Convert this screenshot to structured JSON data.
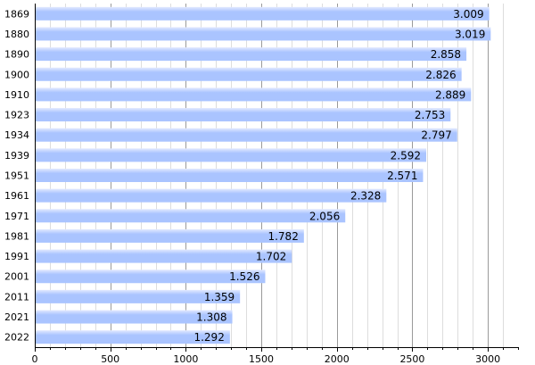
{
  "chart_data": {
    "type": "bar",
    "orientation": "horizontal",
    "categories": [
      "1869",
      "1880",
      "1890",
      "1900",
      "1910",
      "1923",
      "1934",
      "1939",
      "1951",
      "1961",
      "1971",
      "1981",
      "1991",
      "2001",
      "2011",
      "2021",
      "2022"
    ],
    "values": [
      3009,
      3019,
      2858,
      2826,
      2889,
      2753,
      2797,
      2592,
      2571,
      2328,
      2056,
      1782,
      1702,
      1526,
      1359,
      1308,
      1292
    ],
    "value_labels": [
      "3.009",
      "3.019",
      "2.858",
      "2.826",
      "2.889",
      "2.753",
      "2.797",
      "2.592",
      "2.571",
      "2.328",
      "2.056",
      "1.782",
      "1.702",
      "1.526",
      "1.359",
      "1.308",
      "1.292"
    ],
    "xlim": [
      0,
      3200
    ],
    "xticks": [
      0,
      500,
      1000,
      1500,
      2000,
      2500,
      3000
    ],
    "xtick_labels": [
      "0",
      "500",
      "1000",
      "1500",
      "2000",
      "2500",
      "3000"
    ],
    "grid": "vertical",
    "colors": {
      "bar": "#aac4ff",
      "bar_highlight": "#e2e9ff",
      "grid_major": "#9a9a9a",
      "grid_minor": "#dddddd",
      "axis": "#000000"
    }
  }
}
